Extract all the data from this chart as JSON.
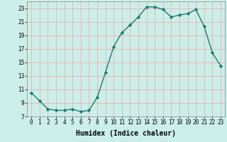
{
  "x": [
    0,
    1,
    2,
    3,
    4,
    5,
    6,
    7,
    8,
    9,
    10,
    11,
    12,
    13,
    14,
    15,
    16,
    17,
    18,
    19,
    20,
    21,
    22,
    23
  ],
  "y": [
    10.5,
    9.3,
    8.1,
    7.9,
    7.9,
    8.1,
    7.7,
    7.9,
    9.8,
    13.5,
    17.3,
    19.4,
    20.5,
    21.7,
    23.2,
    23.2,
    22.8,
    21.7,
    22.0,
    22.2,
    22.8,
    20.3,
    16.4,
    14.5
  ],
  "line_color": "#1a7a6e",
  "marker": "D",
  "markersize": 2.2,
  "linewidth": 1.0,
  "xlabel": "Humidex (Indice chaleur)",
  "xlabel_fontsize": 7,
  "background_color": "#cceee8",
  "grid_color": "#e8b0b0",
  "xlim": [
    -0.5,
    23.5
  ],
  "ylim": [
    7,
    24
  ],
  "yticks": [
    7,
    9,
    11,
    13,
    15,
    17,
    19,
    21,
    23
  ],
  "xticks": [
    0,
    1,
    2,
    3,
    4,
    5,
    6,
    7,
    8,
    9,
    10,
    11,
    12,
    13,
    14,
    15,
    16,
    17,
    18,
    19,
    20,
    21,
    22,
    23
  ],
  "tick_fontsize": 5.5,
  "spine_color": "#888888"
}
